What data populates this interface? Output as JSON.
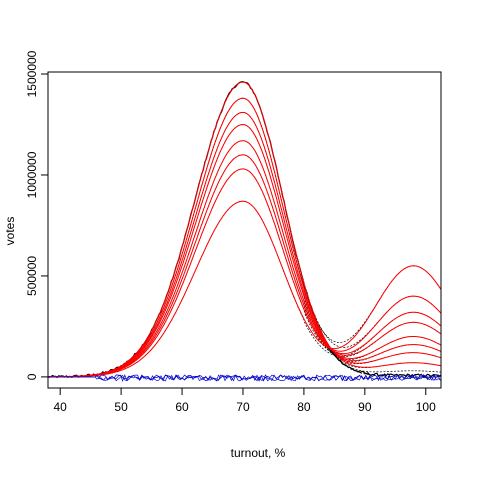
{
  "chart_data": {
    "type": "line",
    "title": "",
    "xlabel": "turnout, %",
    "ylabel": "votes",
    "xlim": [
      38,
      102.5
    ],
    "ylim": [
      -55000,
      1510000
    ],
    "x_ticks": [
      40,
      50,
      60,
      70,
      80,
      90,
      100
    ],
    "x_tick_labels": [
      "40",
      "50",
      "60",
      "70",
      "80",
      "90",
      "100"
    ],
    "y_ticks": [
      0,
      500000,
      1000000,
      1500000
    ],
    "y_tick_labels": [
      "0",
      "500000",
      "1000000",
      "1500000"
    ],
    "grid": false,
    "legend": "none",
    "colors": {
      "black": "#000000",
      "red": "#ff0000",
      "blue": "#0000cc"
    },
    "model": {
      "description_x": "turnout, %",
      "bulk_peaks": [
        1460000,
        1380000,
        1310000,
        1250000,
        1170000,
        1100000,
        1030000,
        870000
      ],
      "bulk_center": 70,
      "bulk_left_width": 7.8,
      "bulk_right_width": 6.6,
      "tail_peaks": [
        0,
        30000,
        70000,
        120000,
        160000,
        200000,
        270000,
        320000,
        400000,
        550000
      ],
      "tail_center": 98,
      "tail_width": 6.5,
      "start_x": 38,
      "end_x": 102.5
    }
  }
}
